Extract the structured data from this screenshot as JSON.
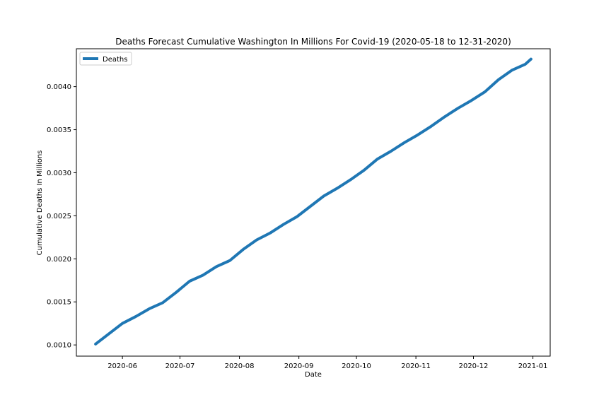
{
  "chart_data": {
    "type": "line",
    "title": "Deaths Forecast Cumulative Washington In Millions For Covid-19 (2020-05-18 to 12-31-2020)",
    "xlabel": "Date",
    "ylabel": "Cumulative Deaths In Millions",
    "xlim": [
      "2020-05-08",
      "2021-01-10"
    ],
    "ylim": [
      0.00087,
      0.00444
    ],
    "x_ticks": [
      "2020-06",
      "2020-07",
      "2020-08",
      "2020-09",
      "2020-10",
      "2020-11",
      "2020-12",
      "2021-01"
    ],
    "x_tick_dates": [
      "2020-06-01",
      "2020-07-01",
      "2020-08-01",
      "2020-09-01",
      "2020-10-01",
      "2020-11-01",
      "2020-12-01",
      "2021-01-01"
    ],
    "y_ticks": [
      0.001,
      0.0015,
      0.002,
      0.0025,
      0.003,
      0.0035,
      0.004
    ],
    "y_tick_labels": [
      "0.0010",
      "0.0015",
      "0.0020",
      "0.0025",
      "0.0030",
      "0.0035",
      "0.0040"
    ],
    "grid": false,
    "legend_position": "upper-left",
    "series": [
      {
        "name": "Deaths",
        "color": "#1f77b4",
        "x": [
          "2020-05-18",
          "2020-05-25",
          "2020-06-01",
          "2020-06-08",
          "2020-06-15",
          "2020-06-22",
          "2020-06-29",
          "2020-07-06",
          "2020-07-13",
          "2020-07-20",
          "2020-07-27",
          "2020-08-03",
          "2020-08-10",
          "2020-08-17",
          "2020-08-24",
          "2020-08-31",
          "2020-09-07",
          "2020-09-14",
          "2020-09-21",
          "2020-09-28",
          "2020-10-05",
          "2020-10-12",
          "2020-10-19",
          "2020-10-26",
          "2020-11-02",
          "2020-11-09",
          "2020-11-16",
          "2020-11-23",
          "2020-11-30",
          "2020-12-07",
          "2020-12-14",
          "2020-12-21",
          "2020-12-28",
          "2020-12-31"
        ],
        "y": [
          0.00101,
          0.00113,
          0.00125,
          0.00133,
          0.00142,
          0.00149,
          0.00161,
          0.00174,
          0.00181,
          0.00191,
          0.00198,
          0.00211,
          0.00222,
          0.0023,
          0.0024,
          0.00249,
          0.00261,
          0.00273,
          0.00282,
          0.00292,
          0.00303,
          0.00316,
          0.00325,
          0.00335,
          0.00344,
          0.00354,
          0.00365,
          0.00375,
          0.00384,
          0.00394,
          0.00408,
          0.00419,
          0.00426,
          0.00432
        ]
      }
    ]
  }
}
